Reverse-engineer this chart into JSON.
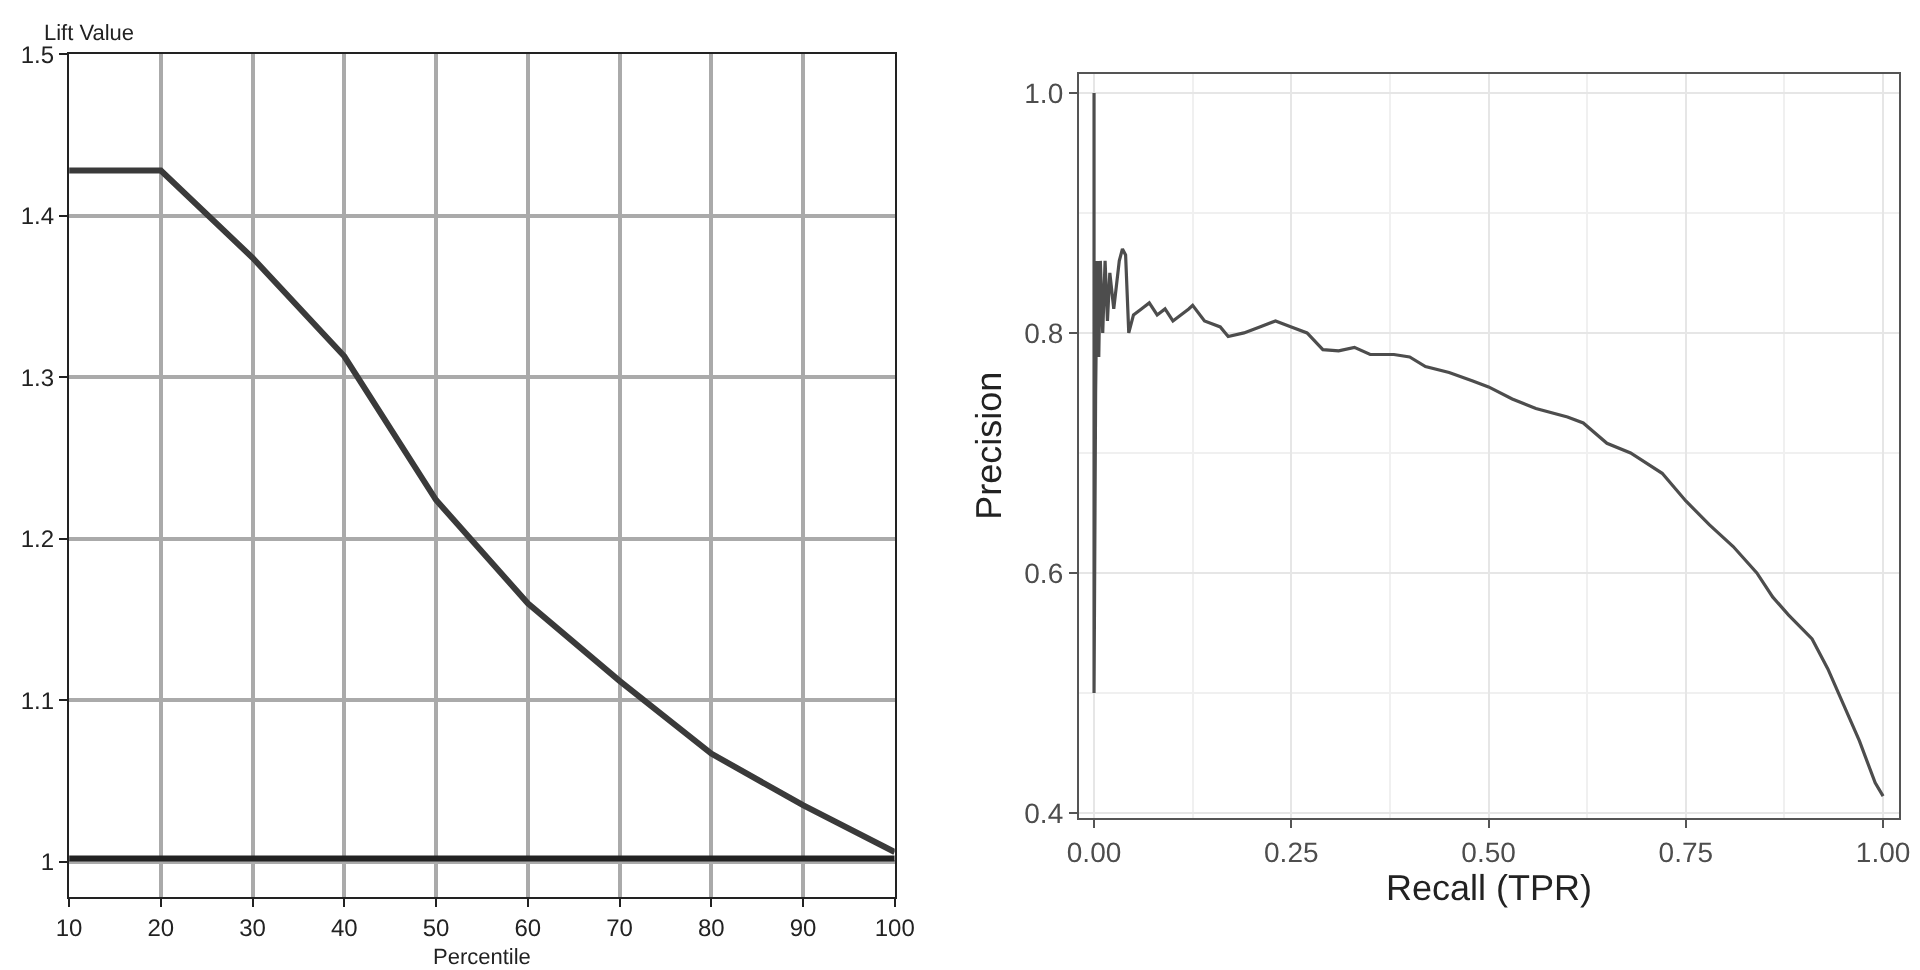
{
  "chart_data": [
    {
      "type": "line",
      "xlabel": "Percentile",
      "ylabel": "Lift Value",
      "xlim": [
        10,
        100
      ],
      "ylim": [
        0.978,
        1.5
      ],
      "xticks": [
        10,
        20,
        30,
        40,
        50,
        60,
        70,
        80,
        90,
        100
      ],
      "yticks": [
        1,
        1.1,
        1.2,
        1.3,
        1.4,
        1.5
      ],
      "grid": true,
      "marker": "none",
      "line_style": "solid",
      "x": [
        10,
        20,
        30,
        40,
        50,
        60,
        70,
        80,
        90,
        100
      ],
      "series": [
        {
          "color": "#3a3a3a",
          "values": [
            1.428,
            1.428,
            1.374,
            1.313,
            1.224,
            1.16,
            1.112,
            1.067,
            1.035,
            1.006
          ]
        },
        {
          "color": "#222222",
          "values": [
            1.002,
            1.002,
            1.002,
            1.002,
            1.002,
            1.002,
            1.002,
            1.002,
            1.002,
            1.002
          ]
        }
      ]
    },
    {
      "type": "line",
      "xlabel": "Recall (TPR)",
      "ylabel": "Precision",
      "xlim": [
        -0.019,
        1.02
      ],
      "ylim": [
        0.396,
        1.016
      ],
      "xticks": [
        {
          "value": 0,
          "label": "0.00"
        },
        {
          "value": 0.25,
          "label": "0.25"
        },
        {
          "value": 0.5,
          "label": "0.50"
        },
        {
          "value": 0.75,
          "label": "0.75"
        },
        {
          "value": 1,
          "label": "1.00"
        }
      ],
      "yticks": [
        {
          "value": 0.4,
          "label": "0.4"
        },
        {
          "value": 0.6,
          "label": "0.6"
        },
        {
          "value": 0.8,
          "label": "0.8"
        },
        {
          "value": 1,
          "label": "1.0"
        }
      ],
      "grid": true,
      "marker": "none",
      "line_style": "solid",
      "series": [
        {
          "color": "#4d4d4d",
          "x": [
            0,
            0,
            0.002,
            0.004,
            0.006,
            0.008,
            0.011,
            0.014,
            0.017,
            0.02,
            0.025,
            0.032,
            0.036,
            0.04,
            0.044,
            0.05,
            0.06,
            0.07,
            0.08,
            0.09,
            0.1,
            0.12,
            0.125,
            0.14,
            0.16,
            0.17,
            0.19,
            0.21,
            0.23,
            0.25,
            0.27,
            0.29,
            0.31,
            0.33,
            0.35,
            0.38,
            0.4,
            0.42,
            0.45,
            0.48,
            0.5,
            0.53,
            0.56,
            0.6,
            0.62,
            0.65,
            0.68,
            0.72,
            0.75,
            0.78,
            0.81,
            0.84,
            0.86,
            0.88,
            0.91,
            0.93,
            0.95,
            0.97,
            0.99,
            1.0
          ],
          "values": [
            1.0,
            0.5,
            0.75,
            0.86,
            0.78,
            0.86,
            0.8,
            0.86,
            0.81,
            0.85,
            0.82,
            0.86,
            0.87,
            0.865,
            0.8,
            0.815,
            0.82,
            0.825,
            0.815,
            0.82,
            0.81,
            0.82,
            0.823,
            0.81,
            0.805,
            0.797,
            0.8,
            0.805,
            0.81,
            0.805,
            0.8,
            0.786,
            0.785,
            0.788,
            0.782,
            0.782,
            0.78,
            0.772,
            0.767,
            0.76,
            0.755,
            0.745,
            0.737,
            0.73,
            0.725,
            0.708,
            0.7,
            0.683,
            0.66,
            0.64,
            0.622,
            0.6,
            0.58,
            0.565,
            0.545,
            0.52,
            0.49,
            0.46,
            0.425,
            0.414
          ]
        }
      ]
    }
  ]
}
